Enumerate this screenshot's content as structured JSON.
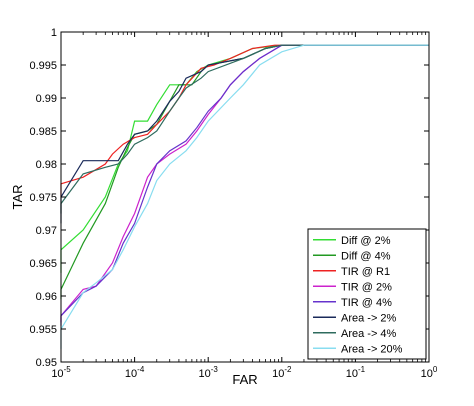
{
  "chart_data": {
    "type": "line",
    "title": "",
    "xlabel": "FAR",
    "ylabel": "TAR",
    "x_scale": "log",
    "xlim": [
      1e-05,
      1
    ],
    "ylim": [
      0.95,
      1
    ],
    "x_ticks": [
      1e-05,
      0.0001,
      0.001,
      0.01,
      0.1,
      1
    ],
    "x_tick_labels": [
      {
        "base": "10",
        "exp": "-5"
      },
      {
        "base": "10",
        "exp": "-4"
      },
      {
        "base": "10",
        "exp": "-3"
      },
      {
        "base": "10",
        "exp": "-2"
      },
      {
        "base": "10",
        "exp": "-1"
      },
      {
        "base": "10",
        "exp": "0"
      }
    ],
    "y_ticks": [
      "0.95",
      "0.955",
      "0.96",
      "0.965",
      "0.97",
      "0.975",
      "0.98",
      "0.985",
      "0.99",
      "0.995",
      "1"
    ],
    "grid": false,
    "legend_position": "bottom-right",
    "series": [
      {
        "name": "Diff @ 2%",
        "color": "#33dd33",
        "x": [
          1e-05,
          1e-05,
          2e-05,
          4e-05,
          6e-05,
          8e-05,
          0.0001,
          0.00015,
          0.0002,
          0.0003,
          0.0004,
          0.0005,
          0.0007,
          0.001,
          0.002,
          0.004,
          0.01,
          1
        ],
        "y": [
          0.9635,
          0.967,
          0.97,
          0.975,
          0.98,
          0.982,
          0.9865,
          0.9865,
          0.989,
          0.992,
          0.992,
          0.992,
          0.994,
          0.995,
          0.996,
          0.9975,
          0.998,
          0.998
        ]
      },
      {
        "name": "Diff @ 4%",
        "color": "#229922",
        "x": [
          1e-05,
          1e-05,
          2e-05,
          4e-05,
          6e-05,
          8e-05,
          0.0001,
          0.00015,
          0.0002,
          0.0003,
          0.0004,
          0.0006,
          0.0008,
          0.001,
          0.003,
          0.006,
          0.01,
          1
        ],
        "y": [
          0.9595,
          0.961,
          0.968,
          0.974,
          0.9795,
          0.9825,
          0.9845,
          0.985,
          0.986,
          0.9895,
          0.992,
          0.992,
          0.994,
          0.995,
          0.996,
          0.9975,
          0.998,
          0.998
        ]
      },
      {
        "name": "TIR @ R1",
        "color": "#ee2222",
        "x": [
          1e-05,
          1e-05,
          2e-05,
          4e-05,
          5e-05,
          7e-05,
          0.0001,
          0.00015,
          0.0002,
          0.0003,
          0.0004,
          0.0005,
          0.0008,
          0.0012,
          0.002,
          0.004,
          0.008,
          1
        ],
        "y": [
          0.975,
          0.977,
          0.978,
          0.98,
          0.9815,
          0.983,
          0.984,
          0.9845,
          0.986,
          0.988,
          0.99,
          0.992,
          0.9945,
          0.995,
          0.996,
          0.9975,
          0.998,
          0.998
        ]
      },
      {
        "name": "TIR @ 2%",
        "color": "#cc22cc",
        "x": [
          1e-05,
          1e-05,
          2e-05,
          3e-05,
          5e-05,
          7e-05,
          0.0001,
          0.00015,
          0.0002,
          0.0003,
          0.0005,
          0.0007,
          0.001,
          0.0015,
          0.002,
          0.003,
          0.005,
          0.01,
          1
        ],
        "y": [
          0.956,
          0.957,
          0.961,
          0.9615,
          0.965,
          0.969,
          0.9725,
          0.978,
          0.98,
          0.9815,
          0.983,
          0.985,
          0.9875,
          0.99,
          0.992,
          0.994,
          0.996,
          0.998,
          0.998
        ]
      },
      {
        "name": "TIR @ 4%",
        "color": "#6633cc",
        "x": [
          1e-05,
          1e-05,
          2e-05,
          3e-05,
          5e-05,
          7e-05,
          0.0001,
          0.00015,
          0.0002,
          0.0003,
          0.0005,
          0.0007,
          0.001,
          0.0015,
          0.002,
          0.003,
          0.005,
          0.01,
          1
        ],
        "y": [
          0.9555,
          0.957,
          0.9605,
          0.9615,
          0.964,
          0.968,
          0.971,
          0.9765,
          0.98,
          0.982,
          0.9835,
          0.9855,
          0.988,
          0.99,
          0.992,
          0.994,
          0.996,
          0.998,
          0.998
        ]
      },
      {
        "name": "Area -> 2%",
        "color": "#1a2a5a",
        "x": [
          1e-05,
          1e-05,
          2e-05,
          4e-05,
          6e-05,
          8e-05,
          0.0001,
          0.00015,
          0.0002,
          0.0003,
          0.0004,
          0.0005,
          0.0008,
          0.001,
          0.003,
          0.006,
          0.01,
          1
        ],
        "y": [
          0.971,
          0.975,
          0.9805,
          0.9805,
          0.9805,
          0.983,
          0.9845,
          0.985,
          0.9865,
          0.9895,
          0.991,
          0.993,
          0.994,
          0.995,
          0.996,
          0.9975,
          0.998,
          0.998
        ]
      },
      {
        "name": "Area -> 4%",
        "color": "#2e6b5e",
        "x": [
          1e-05,
          1e-05,
          2e-05,
          4e-05,
          6e-05,
          8e-05,
          0.0001,
          0.00015,
          0.0002,
          0.0003,
          0.0004,
          0.0005,
          0.0008,
          0.001,
          0.003,
          0.006,
          0.01,
          1
        ],
        "y": [
          0.9725,
          0.974,
          0.9785,
          0.9795,
          0.98,
          0.9815,
          0.983,
          0.984,
          0.985,
          0.988,
          0.99,
          0.9915,
          0.993,
          0.994,
          0.996,
          0.9975,
          0.998,
          0.998
        ]
      },
      {
        "name": "Area -> 20%",
        "color": "#88ddf0",
        "x": [
          1e-05,
          1e-05,
          2e-05,
          3e-05,
          5e-05,
          7e-05,
          0.0001,
          0.00015,
          0.0002,
          0.0003,
          0.0005,
          0.0007,
          0.001,
          0.002,
          0.003,
          0.005,
          0.01,
          0.02,
          1
        ],
        "y": [
          0.952,
          0.955,
          0.9605,
          0.962,
          0.964,
          0.967,
          0.9705,
          0.974,
          0.9775,
          0.98,
          0.982,
          0.984,
          0.9865,
          0.99,
          0.992,
          0.995,
          0.997,
          0.998,
          0.998
        ]
      }
    ]
  }
}
